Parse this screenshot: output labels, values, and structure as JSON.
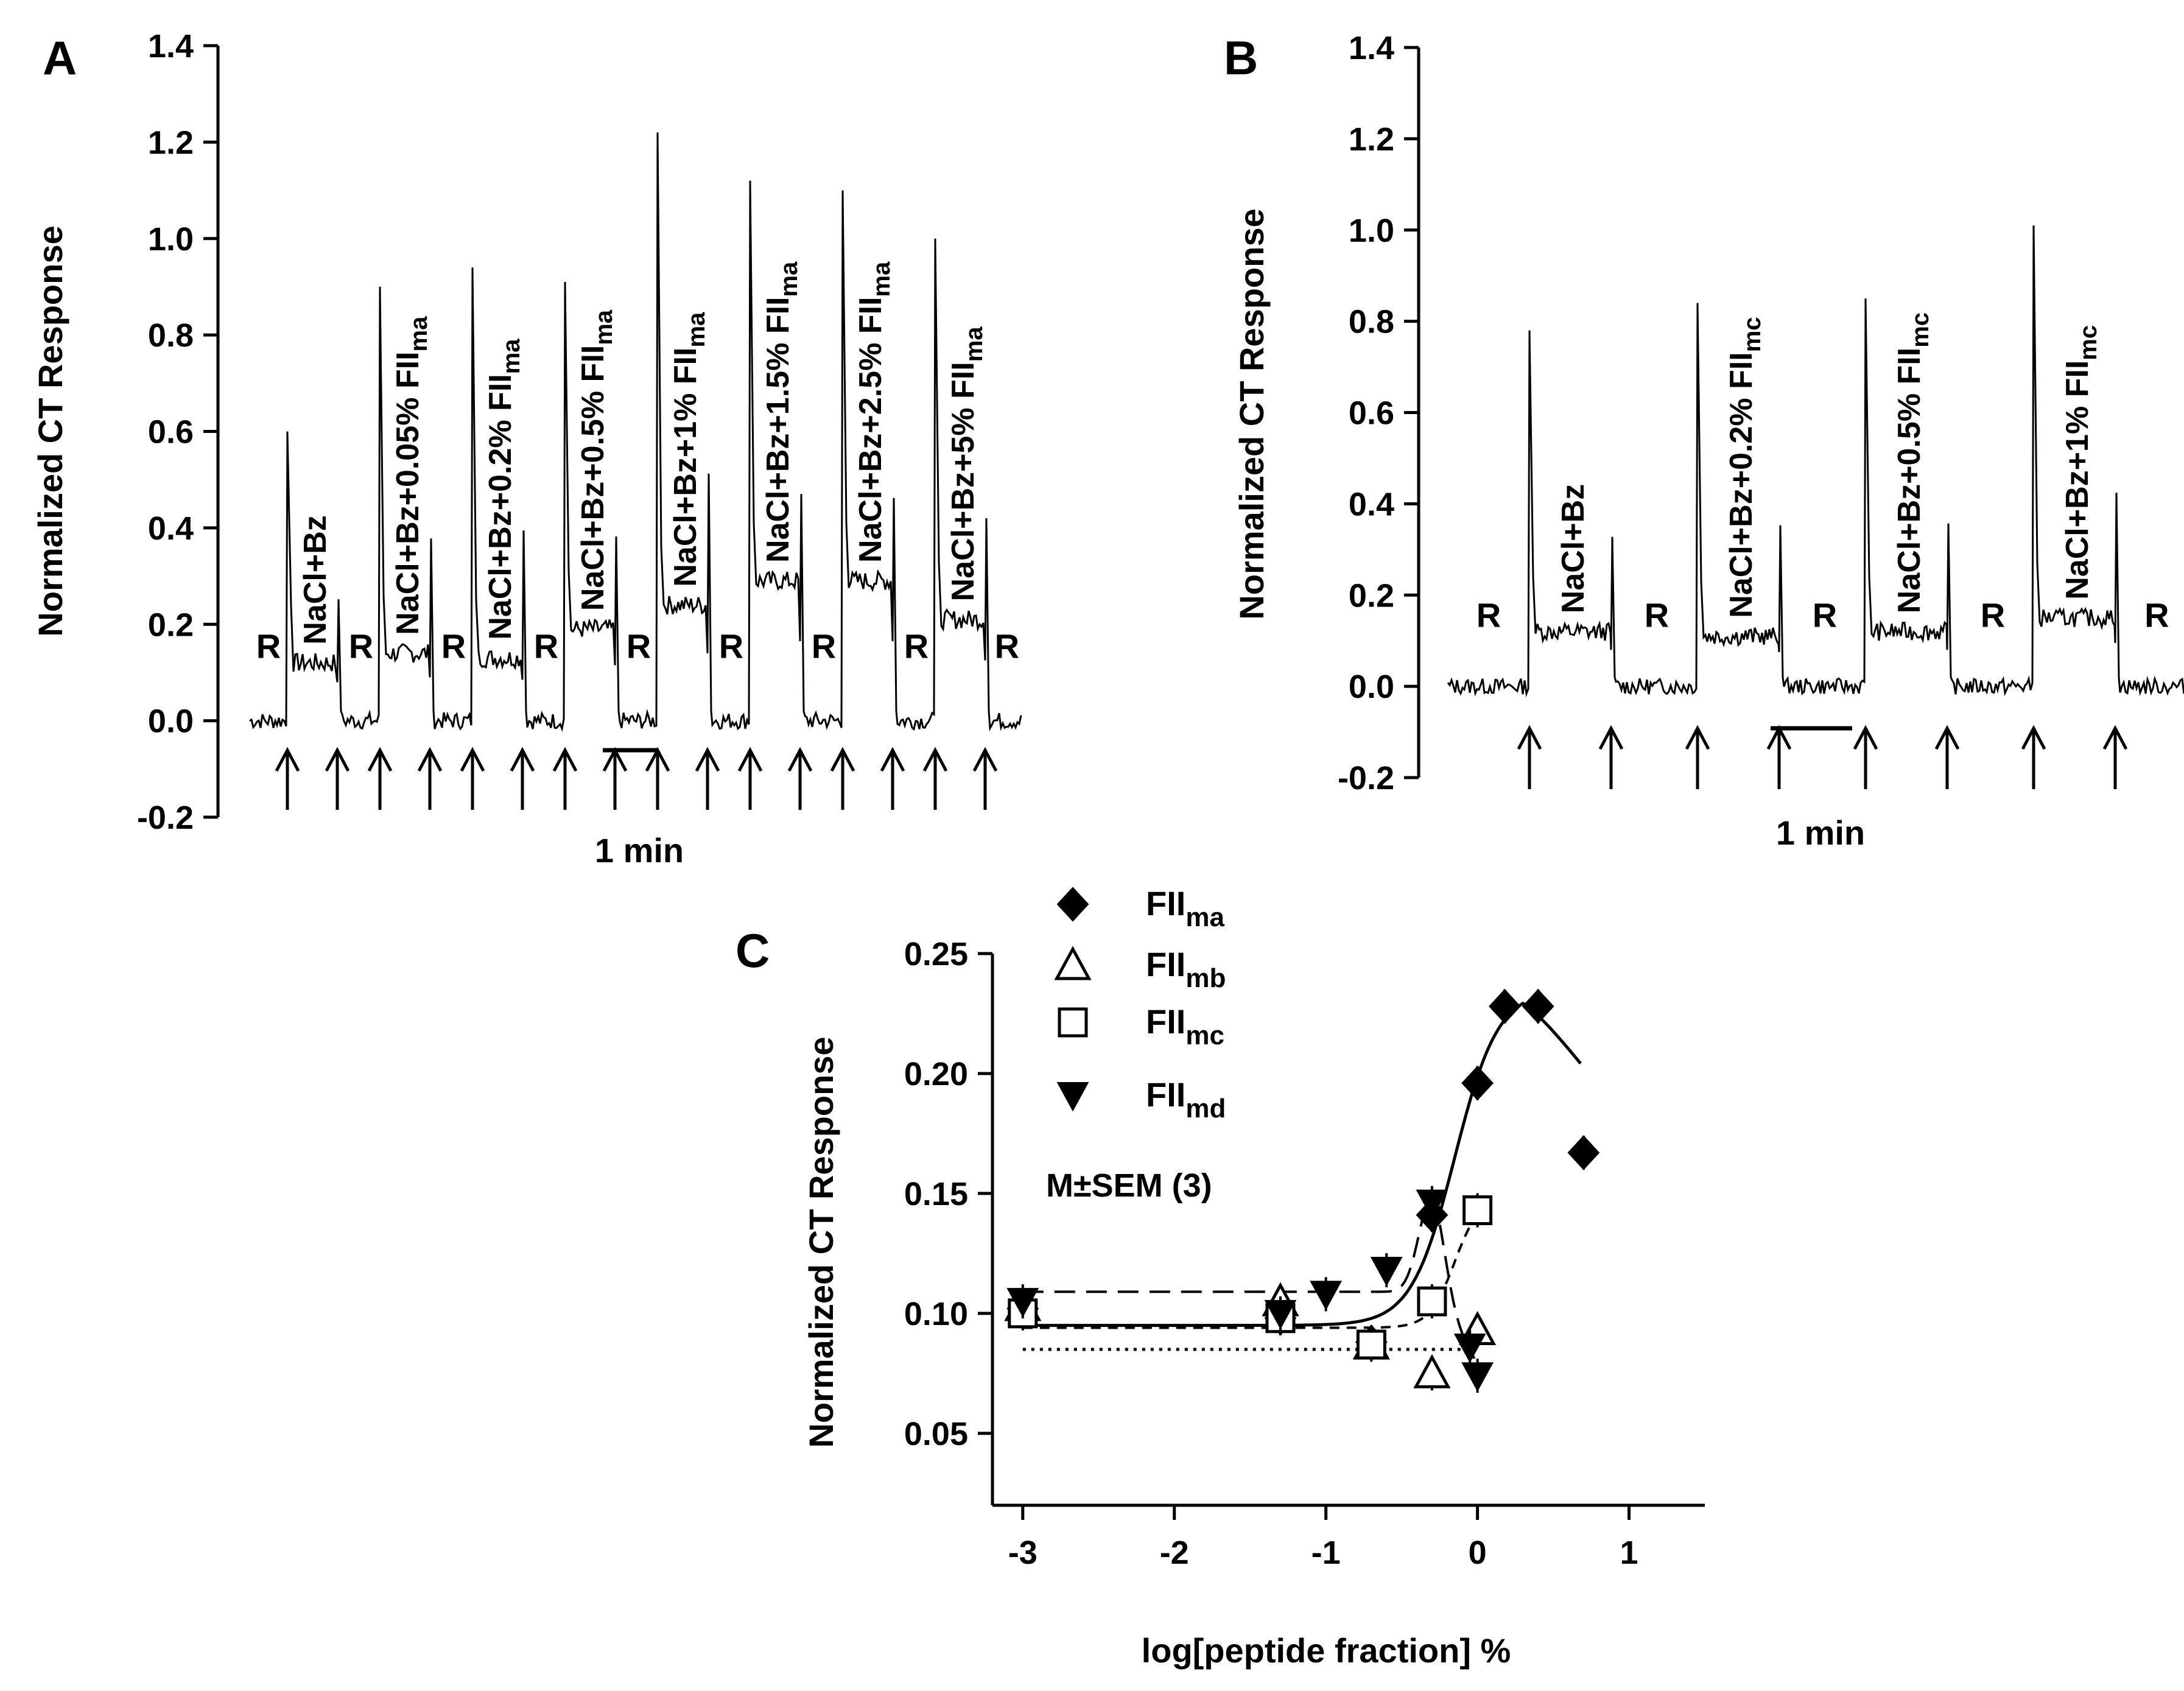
{
  "chart_data": [
    {
      "panel": "A",
      "type": "line",
      "ylabel": "Normalized CT Response",
      "ylim": [
        -0.2,
        1.4
      ],
      "yticks": [
        "-0.2",
        "0.0",
        "0.2",
        "0.4",
        "0.6",
        "0.8",
        "1.0",
        "1.2",
        "1.4"
      ],
      "scale_bar_label": "1 min",
      "rinse_label": "R",
      "segments": [
        {
          "label": "NaCl+Bz",
          "sub": "",
          "peak": 0.6,
          "plateau": 0.12
        },
        {
          "label": "NaCl+Bz+0.05% FII",
          "sub": "ma",
          "peak": 0.9,
          "plateau": 0.14
        },
        {
          "label": "NaCl+Bz+0.2% FII",
          "sub": "ma",
          "peak": 0.94,
          "plateau": 0.13
        },
        {
          "label": "NaCl+Bz+0.5% FII",
          "sub": "ma",
          "peak": 0.91,
          "plateau": 0.19
        },
        {
          "label": "NaCl+Bz+1% FII",
          "sub": "ma",
          "peak": 1.22,
          "plateau": 0.24
        },
        {
          "label": "NaCl+Bz+1.5% FII",
          "sub": "ma",
          "peak": 1.12,
          "plateau": 0.29
        },
        {
          "label": "NaCl+Bz+2.5% FII",
          "sub": "ma",
          "peak": 1.1,
          "plateau": 0.29
        },
        {
          "label": "NaCl+Bz+5% FII",
          "sub": "ma",
          "peak": 1.0,
          "plateau": 0.21
        }
      ]
    },
    {
      "panel": "B",
      "type": "line",
      "ylabel": "Normalized CT Response",
      "ylim": [
        -0.2,
        1.4
      ],
      "yticks": [
        "-0.2",
        "0.0",
        "0.2",
        "0.4",
        "0.6",
        "0.8",
        "1.0",
        "1.2",
        "1.4"
      ],
      "scale_bar_label": "1 min",
      "rinse_label": "R",
      "segments": [
        {
          "label": "NaCl+Bz",
          "sub": "",
          "peak": 0.78,
          "plateau": 0.12
        },
        {
          "label": "NaCl+Bz+0.2% FII",
          "sub": "mc",
          "peak": 0.84,
          "plateau": 0.11
        },
        {
          "label": "NaCl+Bz+0.5% FII",
          "sub": "mc",
          "peak": 0.85,
          "plateau": 0.12
        },
        {
          "label": "NaCl+Bz+1% FII",
          "sub": "mc",
          "peak": 1.01,
          "plateau": 0.15
        }
      ]
    },
    {
      "panel": "C",
      "type": "scatter",
      "xlabel": "log[peptide fraction] %",
      "ylabel": "Normalized CT Response",
      "xlim": [
        -3.2,
        1.5
      ],
      "ylim": [
        0.02,
        0.25
      ],
      "xticks": [
        "-3",
        "-2",
        "-1",
        "0",
        "1"
      ],
      "yticks": [
        "0.05",
        "0.10",
        "0.15",
        "0.20",
        "0.25"
      ],
      "annotation": "M±SEM (3)",
      "series": [
        {
          "name": "FII",
          "sub": "ma",
          "marker": "diamond-filled",
          "x": [
            -3.0,
            -1.3,
            -0.7,
            -0.3,
            0.0,
            0.18,
            0.4,
            0.7
          ],
          "y": [
            0.102,
            0.098,
            0.088,
            0.141,
            0.196,
            0.228,
            0.228,
            0.167
          ]
        },
        {
          "name": "FII",
          "sub": "mb",
          "marker": "triangle-open",
          "x": [
            -3.0,
            -1.3,
            -0.7,
            -0.3,
            0.0
          ],
          "y": [
            0.103,
            0.105,
            0.087,
            0.075,
            0.093
          ]
        },
        {
          "name": "FII",
          "sub": "mc",
          "marker": "square-open",
          "x": [
            -3.0,
            -1.3,
            -0.7,
            -0.3,
            0.0
          ],
          "y": [
            0.1,
            0.098,
            0.087,
            0.105,
            0.143
          ]
        },
        {
          "name": "FII",
          "sub": "md",
          "marker": "triangle-down-filled",
          "x": [
            -3.0,
            -1.3,
            -1.0,
            -0.6,
            -0.3,
            -0.05,
            0.0
          ],
          "y": [
            0.105,
            0.1,
            0.108,
            0.118,
            0.146,
            0.086,
            0.074
          ]
        }
      ]
    }
  ]
}
